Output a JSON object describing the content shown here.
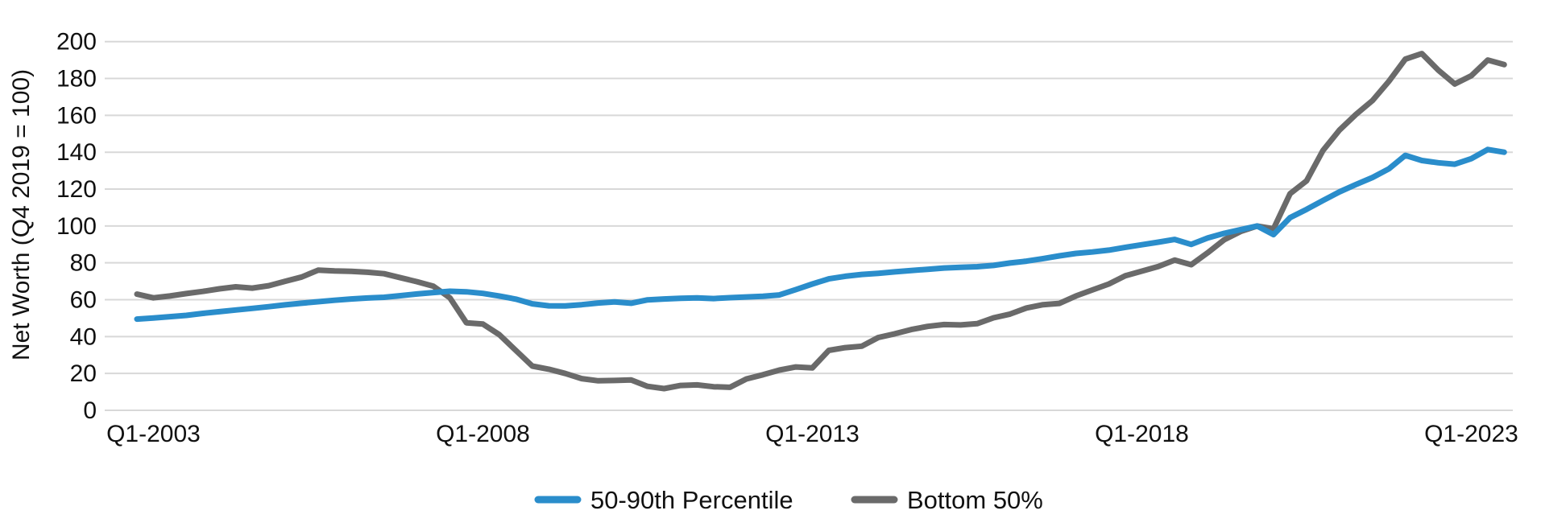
{
  "chart": {
    "y_axis_title": "Net Worth (Q4 2019 = 100)",
    "x_tick_labels": [
      "Q1-2003",
      "Q1-2008",
      "Q1-2013",
      "Q1-2018",
      "Q1-2023"
    ],
    "legend": [
      {
        "label": "50-90th Percentile",
        "color": "#2A8DCB"
      },
      {
        "label": "Bottom 50%",
        "color": "#6A6A6A"
      }
    ],
    "colors": {
      "blue_series": "#2A8DCB",
      "gray_series": "#6A6A6A",
      "gridline": "#D8D8D8",
      "text": "#111111",
      "background": "#FFFFFF"
    }
  },
  "chart_data": {
    "type": "line",
    "title": "",
    "xlabel": "",
    "ylabel": "Net Worth (Q4 2019 = 100)",
    "ylim": [
      0,
      200
    ],
    "y_ticks": [
      0,
      20,
      40,
      60,
      80,
      100,
      120,
      140,
      160,
      180,
      200
    ],
    "grid": true,
    "legend_position": "bottom",
    "x": [
      "Q4-2002",
      "Q1-2003",
      "Q2-2003",
      "Q3-2003",
      "Q4-2003",
      "Q1-2004",
      "Q2-2004",
      "Q3-2004",
      "Q4-2004",
      "Q1-2005",
      "Q2-2005",
      "Q3-2005",
      "Q4-2005",
      "Q1-2006",
      "Q2-2006",
      "Q3-2006",
      "Q4-2006",
      "Q1-2007",
      "Q2-2007",
      "Q3-2007",
      "Q4-2007",
      "Q1-2008",
      "Q2-2008",
      "Q3-2008",
      "Q4-2008",
      "Q1-2009",
      "Q2-2009",
      "Q3-2009",
      "Q4-2009",
      "Q1-2010",
      "Q2-2010",
      "Q3-2010",
      "Q4-2010",
      "Q1-2011",
      "Q2-2011",
      "Q3-2011",
      "Q4-2011",
      "Q1-2012",
      "Q2-2012",
      "Q3-2012",
      "Q4-2012",
      "Q1-2013",
      "Q2-2013",
      "Q3-2013",
      "Q4-2013",
      "Q1-2014",
      "Q2-2014",
      "Q3-2014",
      "Q4-2014",
      "Q1-2015",
      "Q2-2015",
      "Q3-2015",
      "Q4-2015",
      "Q1-2016",
      "Q2-2016",
      "Q3-2016",
      "Q4-2016",
      "Q1-2017",
      "Q2-2017",
      "Q3-2017",
      "Q4-2017",
      "Q1-2018",
      "Q2-2018",
      "Q3-2018",
      "Q4-2018",
      "Q1-2019",
      "Q2-2019",
      "Q3-2019",
      "Q4-2019",
      "Q1-2020",
      "Q2-2020",
      "Q3-2020",
      "Q4-2020",
      "Q1-2021",
      "Q2-2021",
      "Q3-2021",
      "Q4-2021",
      "Q1-2022",
      "Q2-2022",
      "Q3-2022",
      "Q4-2022",
      "Q1-2023",
      "Q2-2023",
      "Q3-2023"
    ],
    "x_tick_indices": [
      1,
      21,
      41,
      61,
      81
    ],
    "x_tick_labels": [
      "Q1-2003",
      "Q1-2008",
      "Q1-2013",
      "Q1-2018",
      "Q1-2023"
    ],
    "series": [
      {
        "name": "50-90th Percentile",
        "color": "#2A8DCB",
        "values": [
          49.5,
          50.1,
          50.8,
          51.5,
          52.6,
          53.5,
          54.4,
          55.3,
          56.2,
          57.2,
          58.1,
          58.9,
          59.7,
          60.4,
          60.9,
          61.3,
          62.2,
          63.1,
          63.9,
          64.6,
          64.3,
          63.4,
          62,
          60.3,
          57.8,
          56.7,
          56.6,
          57.3,
          58.2,
          58.8,
          58.1,
          59.9,
          60.4,
          60.8,
          61,
          60.6,
          61.1,
          61.5,
          61.9,
          62.6,
          65.5,
          68.5,
          71.3,
          72.7,
          73.7,
          74.3,
          75.1,
          75.8,
          76.5,
          77.2,
          77.6,
          77.9,
          78.6,
          79.9,
          80.9,
          82.3,
          83.8,
          85.1,
          85.9,
          86.9,
          88.4,
          89.8,
          91.2,
          92.7,
          90,
          93.5,
          96,
          98,
          100,
          95.3,
          104.5,
          109,
          113.8,
          118.5,
          122.5,
          126.3,
          131,
          138.3,
          135.5,
          134.3,
          133.5,
          136.5,
          141.5,
          140
        ]
      },
      {
        "name": "Bottom 50%",
        "color": "#6A6A6A",
        "values": [
          63,
          61,
          62,
          63.3,
          64.5,
          65.9,
          67,
          66.3,
          67.6,
          70,
          72.3,
          76,
          75.6,
          75.4,
          74.9,
          74.1,
          71.9,
          69.8,
          67.3,
          61,
          47.5,
          46.8,
          41,
          32.5,
          24,
          22.3,
          20,
          17.2,
          16,
          16.2,
          16.5,
          13,
          11.8,
          13.5,
          13.8,
          12.8,
          12.5,
          17,
          19.3,
          21.8,
          23.5,
          23,
          32.5,
          34,
          34.8,
          39.5,
          41.5,
          43.8,
          45.5,
          46.5,
          46.3,
          47,
          50.2,
          52.2,
          55.5,
          57.3,
          58,
          62,
          65.3,
          68.5,
          73,
          75.5,
          78,
          81.5,
          79,
          85.5,
          92.5,
          97,
          100,
          98.5,
          117.5,
          124.5,
          141,
          152,
          160.5,
          168,
          178.5,
          190.5,
          193.5,
          184.5,
          177,
          181.5,
          190,
          187.5
        ]
      }
    ]
  }
}
